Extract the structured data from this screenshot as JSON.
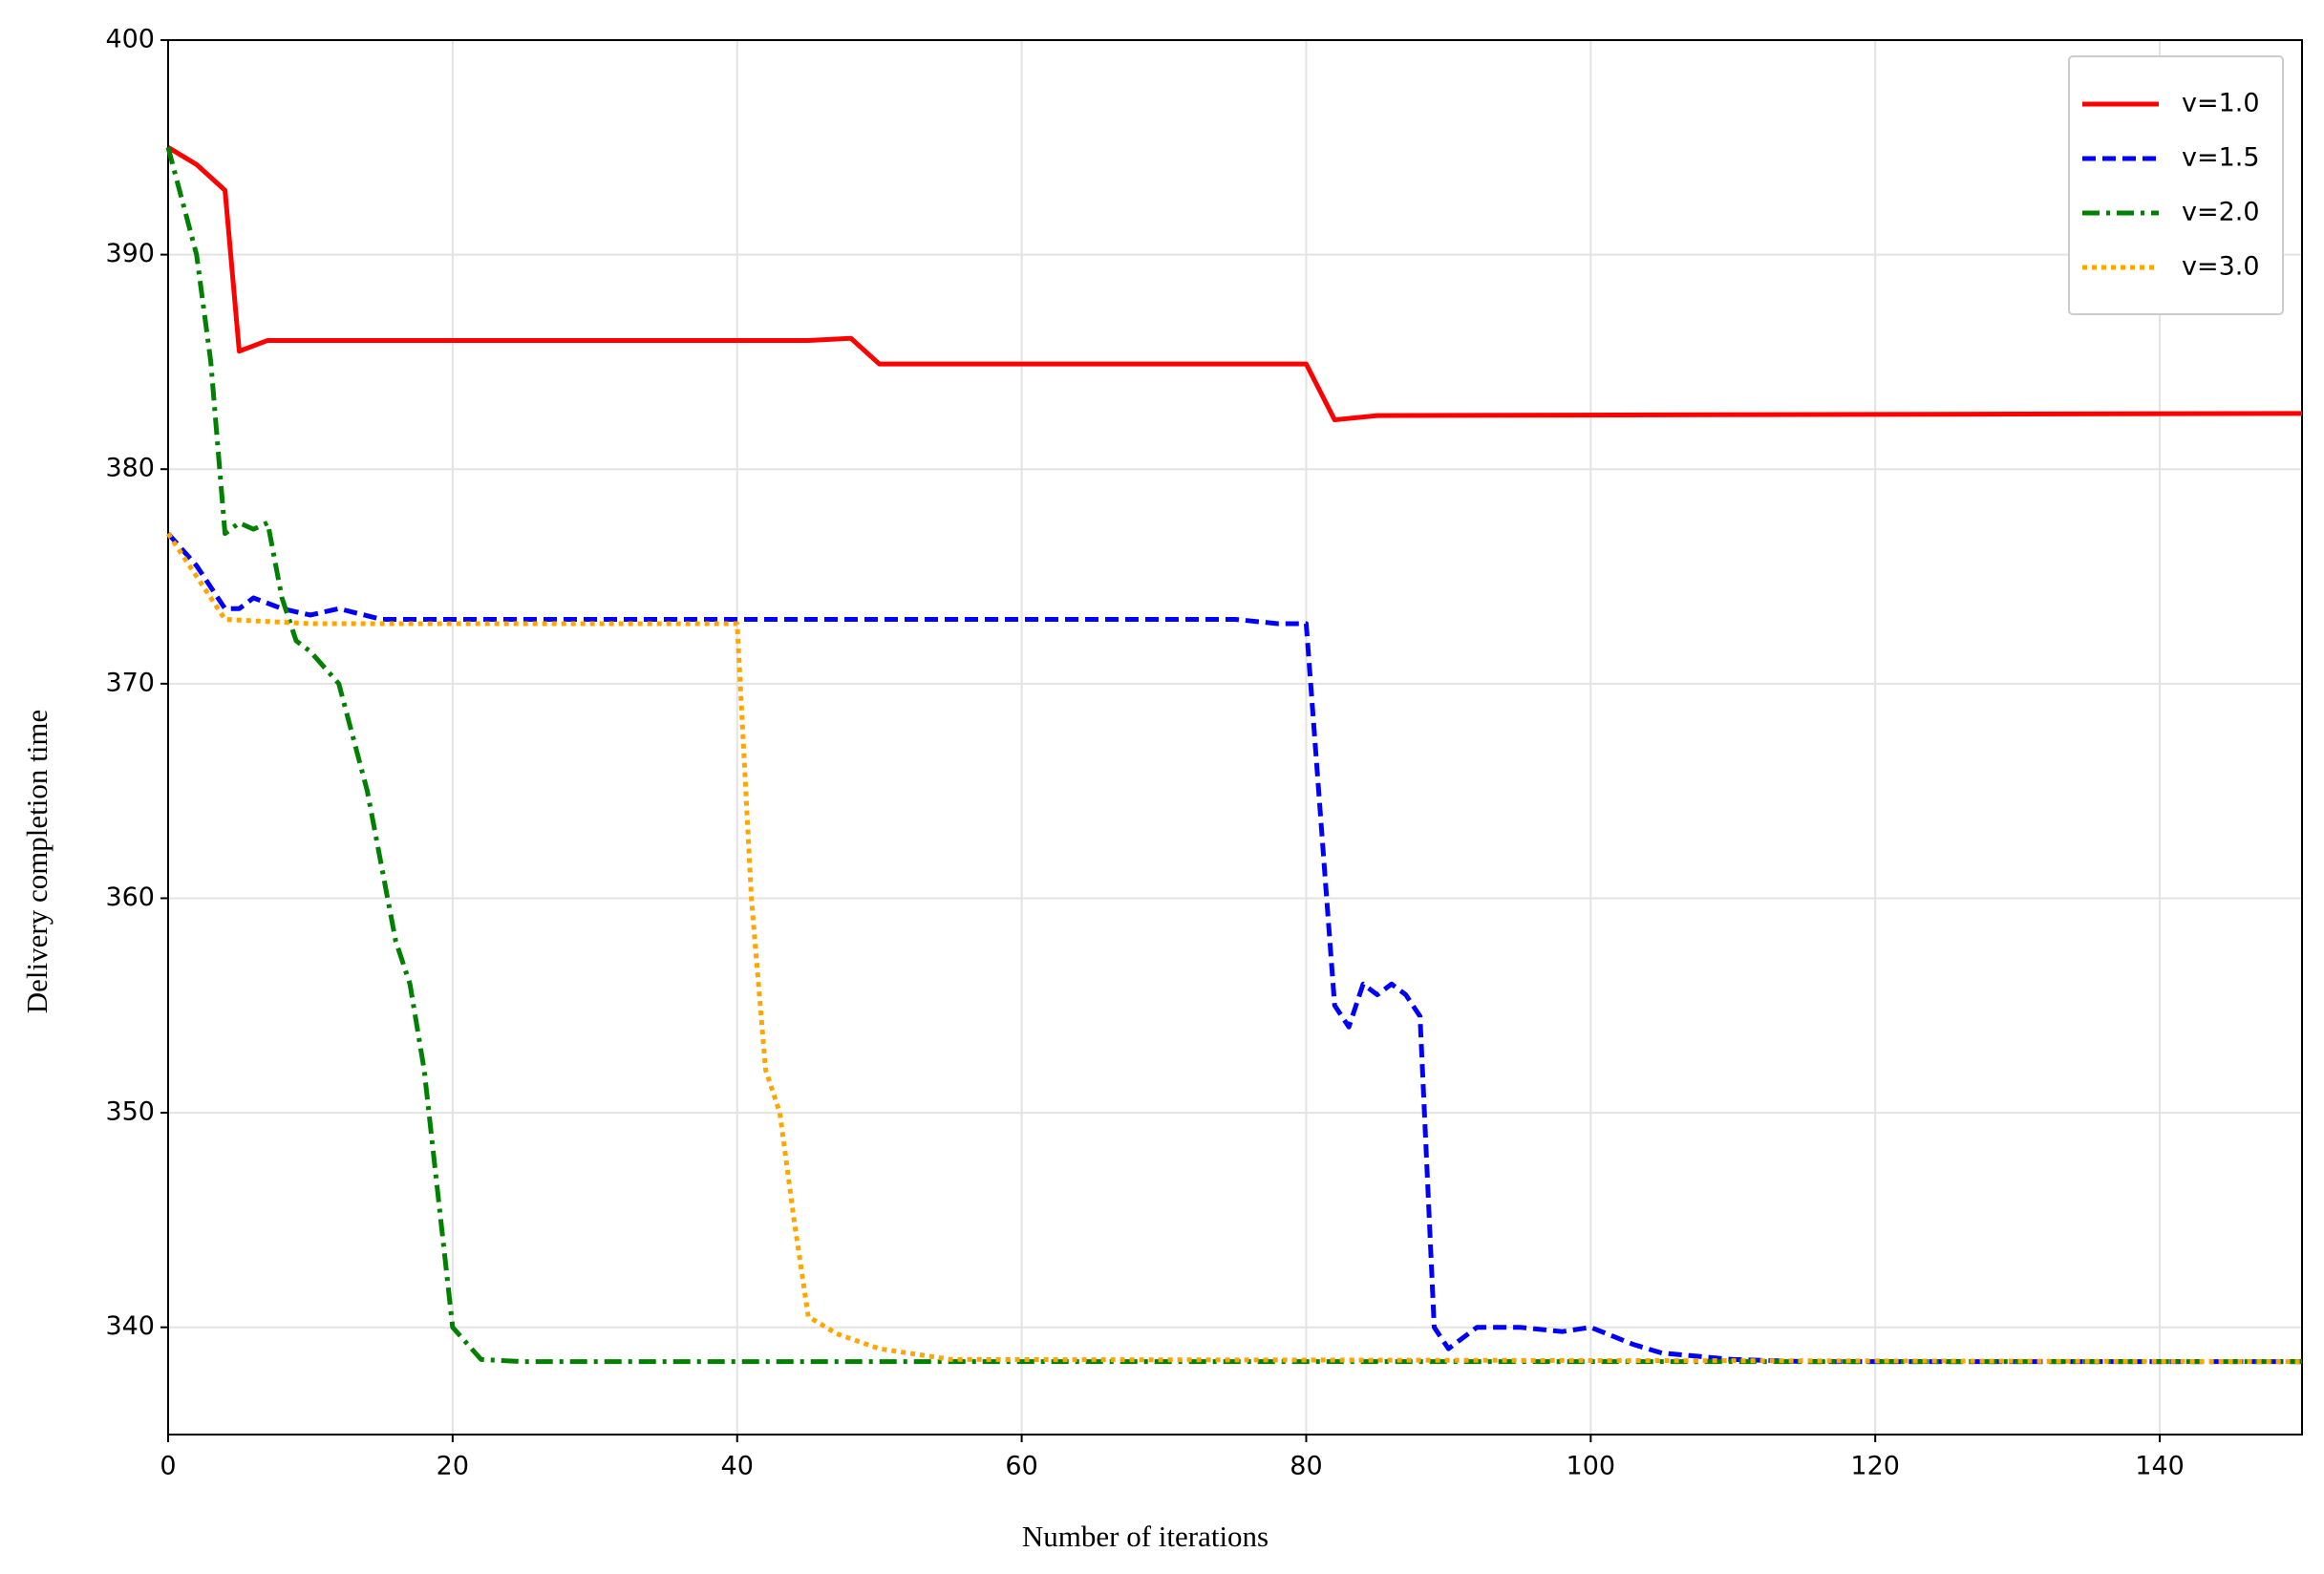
{
  "chart_data": {
    "type": "line",
    "xlabel": "Number of iterations",
    "ylabel": "Delivery completion time",
    "xlim": [
      0,
      150
    ],
    "ylim": [
      335,
      400
    ],
    "xticks": [
      0,
      20,
      40,
      60,
      80,
      100,
      120,
      140
    ],
    "yticks": [
      340,
      350,
      360,
      370,
      380,
      390,
      400
    ],
    "grid": true,
    "legend": "upper right",
    "series": [
      {
        "name": "v=1.0",
        "color": "#ff0000",
        "style": "solid",
        "x": [
          0,
          2,
          4,
          5,
          7,
          45,
          48,
          50,
          80,
          82,
          85,
          150
        ],
        "values": [
          395,
          394.2,
          393,
          385.5,
          386,
          386,
          386.1,
          384.9,
          384.9,
          382.3,
          382.5,
          382.6
        ]
      },
      {
        "name": "v=1.5",
        "color": "#0000ff",
        "style": "dashed",
        "x": [
          0,
          2,
          4,
          5,
          6,
          8,
          10,
          12,
          15,
          75,
          78,
          80,
          82,
          83,
          84,
          85,
          86,
          87,
          88,
          89,
          90,
          92,
          95,
          98,
          100,
          103,
          105,
          110,
          115,
          150
        ],
        "values": [
          377,
          375.5,
          373.5,
          373.5,
          374,
          373.5,
          373.2,
          373.5,
          373,
          373,
          372.8,
          372.8,
          355,
          354,
          356,
          355.5,
          356,
          355.5,
          354.5,
          340,
          339,
          340,
          340,
          339.8,
          340,
          339.2,
          338.8,
          338.5,
          338.4,
          338.4
        ]
      },
      {
        "name": "v=2.0",
        "color": "#008000",
        "style": "dashdot",
        "x": [
          0,
          2,
          3,
          4,
          5,
          6,
          7,
          8,
          9,
          10,
          12,
          14,
          16,
          17,
          18,
          20,
          22,
          25,
          150
        ],
        "values": [
          395,
          390,
          385,
          377,
          377.5,
          377.2,
          377.5,
          374,
          372,
          371.5,
          370,
          365,
          358,
          356,
          352,
          340,
          338.5,
          338.4,
          338.4
        ]
      },
      {
        "name": "v=3.0",
        "color": "#ffa500",
        "style": "dotted",
        "x": [
          0,
          2,
          4,
          10,
          40,
          41,
          42,
          43,
          44,
          45,
          47,
          50,
          55,
          150
        ],
        "values": [
          377,
          375,
          373,
          372.8,
          372.8,
          360,
          352,
          350,
          345,
          340.5,
          339.7,
          339,
          338.5,
          338.4
        ]
      }
    ]
  }
}
